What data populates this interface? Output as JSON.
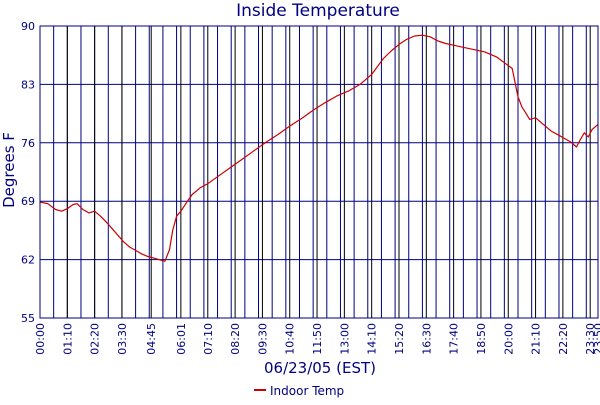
{
  "chart_data": {
    "type": "line",
    "title": "Inside Temperature",
    "xlabel": "06/23/05 (EST)",
    "ylabel": "Degrees F",
    "ylim": [
      55,
      90
    ],
    "yticks": [
      55,
      62,
      69,
      76,
      83,
      90
    ],
    "xlim_minutes": [
      0,
      1430
    ],
    "x_tick_labels": [
      "00:00",
      "01:10",
      "02:20",
      "03:30",
      "04:45",
      "06:01",
      "07:10",
      "08:20",
      "09:30",
      "10:40",
      "11:50",
      "13:00",
      "14:10",
      "15:20",
      "16:30",
      "17:40",
      "18:50",
      "20:00",
      "21:10",
      "22:20",
      "23:30",
      "23:50"
    ],
    "grid": true,
    "legend_position": "bottom-center",
    "colors": {
      "frame": "#000080",
      "text": "#000080",
      "series": "#cc0000",
      "grid": "#000080"
    },
    "series": [
      {
        "name": "Indoor Temp",
        "x": [
          "00:00",
          "00:20",
          "00:40",
          "00:55",
          "01:10",
          "01:25",
          "01:35",
          "01:50",
          "02:05",
          "02:20",
          "02:35",
          "02:50",
          "03:05",
          "03:20",
          "03:35",
          "03:50",
          "04:05",
          "04:20",
          "04:35",
          "04:50",
          "05:05",
          "05:20",
          "05:32",
          "05:40",
          "05:50",
          "06:01",
          "06:15",
          "06:30",
          "06:50",
          "07:10",
          "07:40",
          "08:10",
          "08:40",
          "09:10",
          "09:40",
          "10:10",
          "10:40",
          "11:10",
          "11:40",
          "12:10",
          "12:40",
          "13:10",
          "13:40",
          "14:10",
          "14:40",
          "15:00",
          "15:20",
          "15:40",
          "16:00",
          "16:20",
          "16:40",
          "17:00",
          "17:20",
          "17:40",
          "18:00",
          "18:30",
          "19:00",
          "19:30",
          "19:50",
          "20:10",
          "20:25",
          "20:35",
          "20:42",
          "20:55",
          "21:10",
          "21:30",
          "21:50",
          "22:10",
          "22:25",
          "22:40",
          "22:55",
          "23:05",
          "23:15",
          "23:25",
          "23:35",
          "23:50"
        ],
        "y": [
          68.9,
          68.7,
          68.0,
          67.8,
          68.1,
          68.6,
          68.7,
          68.0,
          67.6,
          67.8,
          67.2,
          66.5,
          65.7,
          64.9,
          64.1,
          63.5,
          63.1,
          62.7,
          62.4,
          62.2,
          62.0,
          61.8,
          63.2,
          65.5,
          67.2,
          67.8,
          68.8,
          69.8,
          70.6,
          71.1,
          72.1,
          73.1,
          74.1,
          75.1,
          76.1,
          77.0,
          78.0,
          78.9,
          79.9,
          80.8,
          81.6,
          82.2,
          83.0,
          84.2,
          86.1,
          87.0,
          87.8,
          88.4,
          88.8,
          88.9,
          88.7,
          88.2,
          87.9,
          87.7,
          87.5,
          87.2,
          86.9,
          86.3,
          85.6,
          84.9,
          81.5,
          80.3,
          79.8,
          78.8,
          79.0,
          78.2,
          77.4,
          76.9,
          76.5,
          76.1,
          75.5,
          76.4,
          77.2,
          76.7,
          77.6,
          78.2
        ]
      }
    ]
  }
}
